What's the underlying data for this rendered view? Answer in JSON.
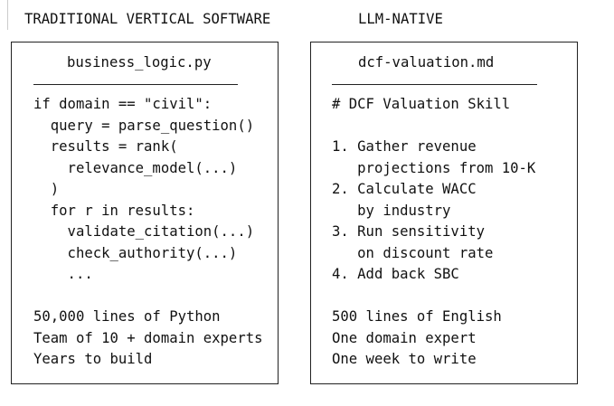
{
  "left": {
    "heading": "TRADITIONAL VERTICAL SOFTWARE",
    "filename": "business_logic.py",
    "lines": [
      "if domain == \"civil\":",
      "  query = parse_question()",
      "  results = rank(",
      "    relevance_model(...)",
      "  )",
      "  for r in results:",
      "    validate_citation(...)",
      "    check_authority(...)",
      "    ...",
      "",
      "50,000 lines of Python",
      "Team of 10 + domain experts",
      "Years to build"
    ]
  },
  "right": {
    "heading": "LLM-NATIVE",
    "filename": "dcf-valuation.md",
    "lines": [
      "# DCF Valuation Skill",
      "",
      "1. Gather revenue",
      "   projections from 10-K",
      "2. Calculate WACC",
      "   by industry",
      "3. Run sensitivity",
      "   on discount rate",
      "4. Add back SBC",
      "",
      "500 lines of English",
      "One domain expert",
      "One week to write"
    ]
  }
}
